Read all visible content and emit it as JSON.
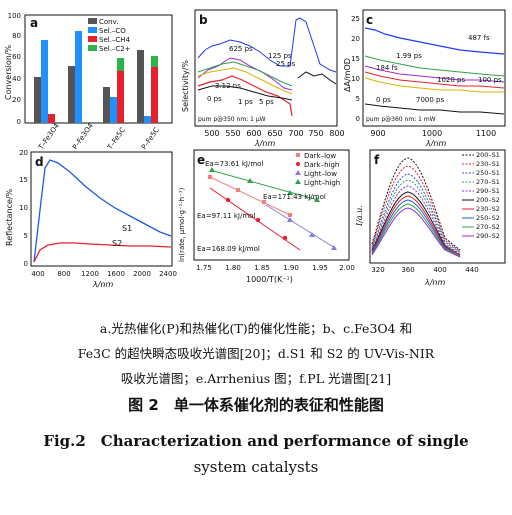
{
  "panels": {
    "a": {
      "letter": "a",
      "ylabel": "Conversion/%",
      "y2label": "Selectivity/%",
      "categories": [
        "T–Fe3O4",
        "P–Fe3O4",
        "T–Fe5C",
        "P–Fe5C"
      ],
      "legend": [
        "Conv.",
        "Sel.–CO",
        "Sel.–CH4",
        "Sel.–C2+"
      ],
      "colors": [
        "#555555",
        "#1e90ff",
        "#e8202a",
        "#2db34a"
      ],
      "yticks": [
        "0",
        "20",
        "40",
        "60",
        "80",
        "100"
      ]
    },
    "b": {
      "letter": "b",
      "xlabel": "λ/nm",
      "ylabel": "Selectivity/%",
      "xticks": [
        "500",
        "550",
        "600",
        "650",
        "700",
        "750",
        "800"
      ],
      "annotations": [
        "625 ps",
        "125 ps",
        "25 ps",
        "3.12 ns",
        "0 ps",
        "1 ps",
        "5 ps"
      ],
      "note": "pum p@350 nm; 1 μW"
    },
    "c": {
      "letter": "c",
      "xlabel": "λ/nm",
      "ylabel": "ΔA/mOD",
      "xticks": [
        "900",
        "1000",
        "1100"
      ],
      "yticks": [
        "0",
        "5",
        "10",
        "15",
        "20",
        "25"
      ],
      "annotations": [
        "487 fs",
        "1.99 ps",
        "184 fs",
        "1020 ps",
        "100 ps",
        "0 ps",
        "7000 ps"
      ],
      "note": "pum p@360 nm; 1 mW"
    },
    "d": {
      "letter": "d",
      "xlabel": "λ/nm",
      "ylabel": "Reflectance/%",
      "xticks": [
        "400",
        "800",
        "1200",
        "1600",
        "2000",
        "2400"
      ],
      "yticks": [
        "0",
        "5",
        "10",
        "15",
        "20"
      ],
      "labels": [
        "S1",
        "S2"
      ]
    },
    "e": {
      "letter": "e",
      "xlabel": "1000/T(K⁻¹)",
      "ylabel": "ln(rate, μmol·g⁻¹·h⁻¹)",
      "xticks": [
        "1.75",
        "1.80",
        "1.85",
        "1.90",
        "1.95",
        "2.00"
      ],
      "legend": [
        "Dark–low",
        "Dark–high",
        "Light–low",
        "Light–high"
      ],
      "annotations": [
        "Ea=73.61 kJ/mol",
        "Ea=171.43 kJ/mol",
        "Ea=97.11 kJ/mol",
        "Ea=168.09 kJ/mol"
      ]
    },
    "f": {
      "letter": "f",
      "xlabel": "λ/nm",
      "ylabel": "I/a.u.",
      "xticks": [
        "320",
        "360",
        "400",
        "440"
      ],
      "legend": [
        "200–S1",
        "230–S1",
        "250–S1",
        "270–S1",
        "290–S1",
        "200–S2",
        "230–S2",
        "250–S2",
        "270–S2",
        "290–S2"
      ]
    }
  },
  "caption": {
    "line1": "a.光热催化(P)和热催化(T)的催化性能；b、c.Fe3O4 和",
    "line2": "Fe3C 的超快瞬态吸收光谱图[20]；d.S1 和 S2 的 UV-Vis-NIR",
    "line3": "吸收光谱图；e.Arrhenius 图；f.PL 光谱图[21]",
    "title_cn": "图 2　单一体系催化剂的表征和性能图",
    "title_en_1": "Fig.2　Characterization and performance of single",
    "title_en_2": "system catalysts"
  }
}
